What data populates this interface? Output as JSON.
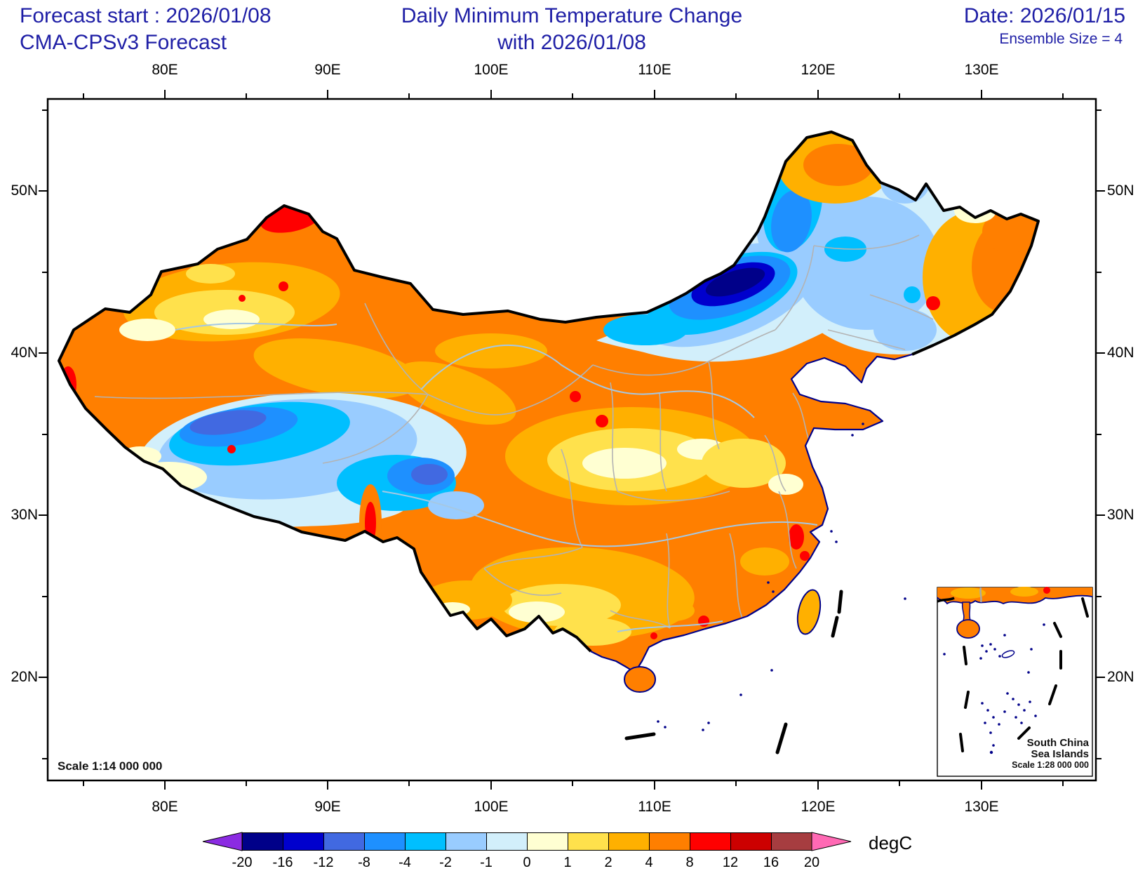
{
  "header": {
    "forecast_start": "Forecast start : 2026/01/08",
    "model_line": "CMA-CPSv3 Forecast",
    "title_line1": "Daily Minimum Temperature Change",
    "title_line2": "with 2026/01/08",
    "date_label": "Date: 2026/01/15",
    "ensemble_label": "Ensemble Size = 4",
    "text_color": "#1F1FA6"
  },
  "axes": {
    "lon_labels": [
      "80E",
      "90E",
      "100E",
      "110E",
      "120E",
      "130E"
    ],
    "lat_labels": [
      "50N",
      "40N",
      "30N",
      "20N"
    ]
  },
  "map": {
    "scale_label": "Scale 1:14 000 000",
    "inset": {
      "line1": "South China",
      "line2": "Sea Islands",
      "line3": "Scale 1:28 000 000"
    }
  },
  "colorbar": {
    "unit_label": "degC",
    "tick_labels": [
      "-20",
      "-16",
      "-12",
      "-8",
      "-4",
      "-2",
      "-1",
      "0",
      "1",
      "2",
      "4",
      "8",
      "12",
      "16",
      "20"
    ],
    "segment_colors": [
      "#000089",
      "#0000CD",
      "#4169E1",
      "#1E90FF",
      "#00BFFF",
      "#99CCFF",
      "#D2EFFB",
      "#FFFFD2",
      "#FFE14C",
      "#FFB000",
      "#FF7F00",
      "#FF0000",
      "#CC0000",
      "#A63D40"
    ],
    "under_arrow_color": "#8B2BE2",
    "over_arrow_color": "#FF69B4"
  }
}
